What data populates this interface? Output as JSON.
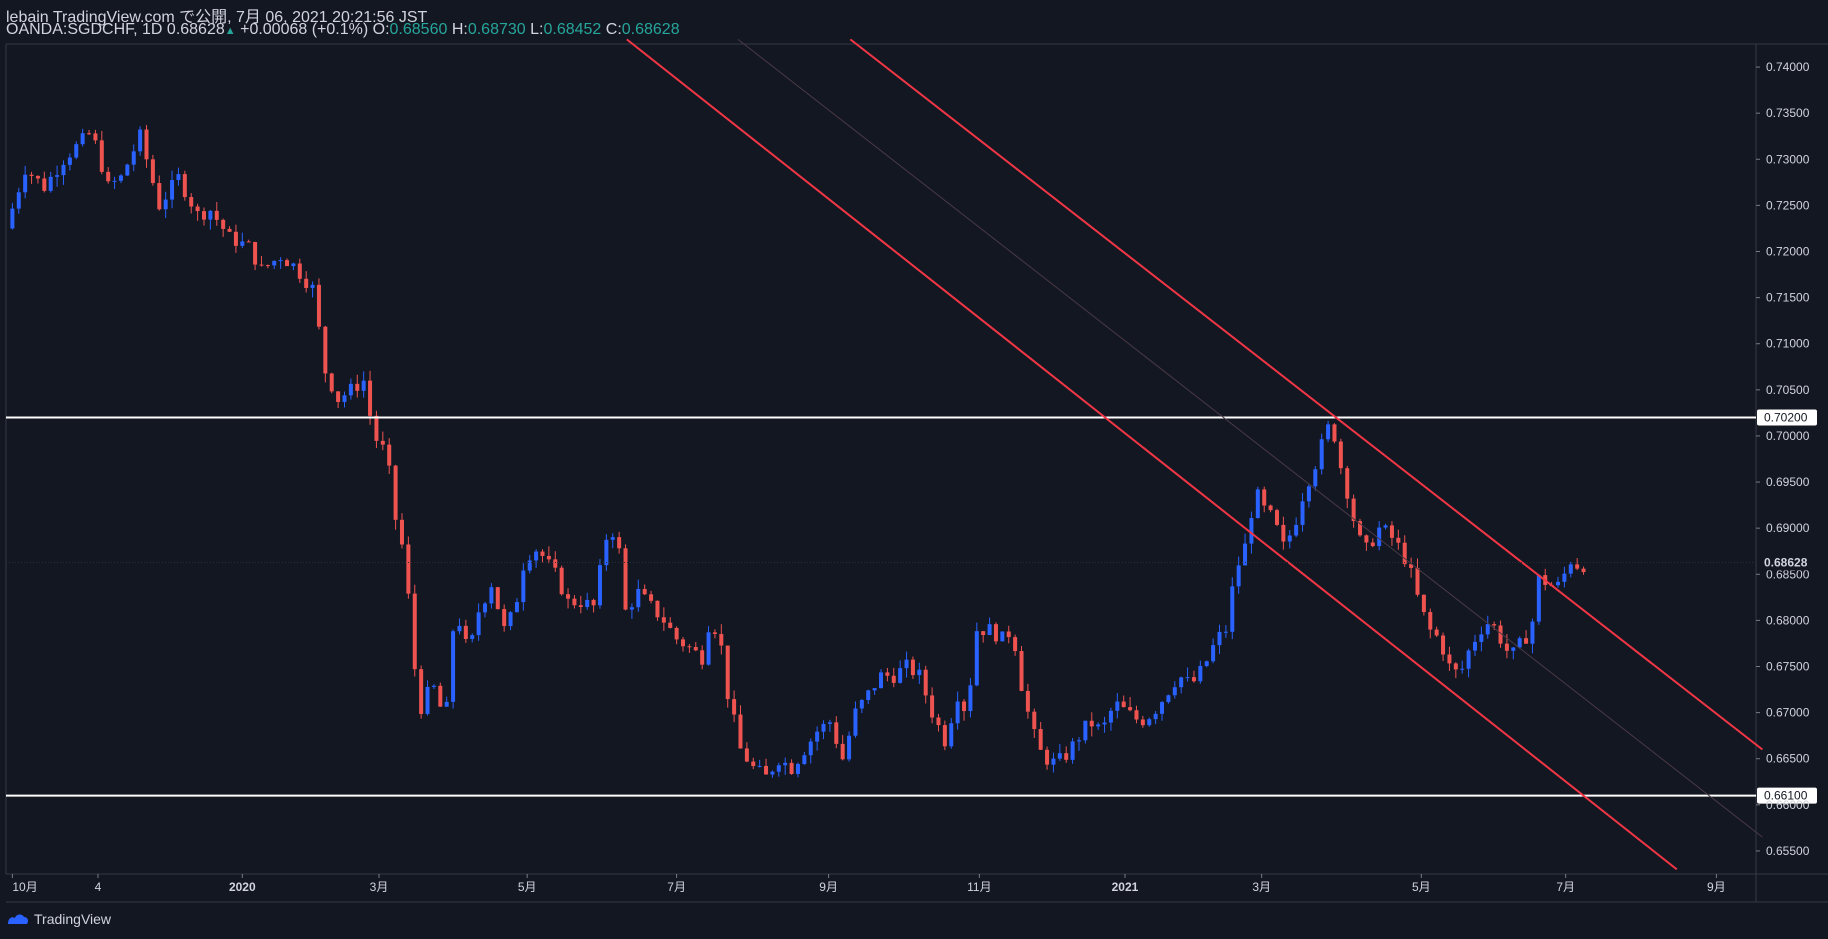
{
  "header": {
    "publisher": "lebain TradingView.com で公開, 7月 06, 2021 20:21:56 JST",
    "symbol": "OANDA:SGDCHF, 1D 0.68628",
    "change_arrow": "▲",
    "change": "+0.00068 (+0.1%)",
    "o_label": "O:",
    "o_value": "0.68560",
    "h_label": "H:",
    "h_value": "0.68730",
    "l_label": "L:",
    "l_value": "0.68452",
    "c_label": "C:",
    "c_value": "0.68628"
  },
  "footer": {
    "brand": "TradingView"
  },
  "colors": {
    "background": "#131722",
    "up": "#2962ff",
    "down": "#ef5350",
    "trendline": "#f23645",
    "level": "#ffffff",
    "text": "#d1d4dc",
    "grid": "#2a2e39"
  },
  "chart_data": {
    "type": "candlestick",
    "symbol": "OANDA:SGDCHF",
    "interval": "1D",
    "ylim": [
      0.6525,
      0.7425
    ],
    "y_ticks": [
      "0.74000",
      "0.73500",
      "0.73000",
      "0.72500",
      "0.72000",
      "0.71500",
      "0.71000",
      "0.70500",
      "0.70000",
      "0.69500",
      "0.69000",
      "0.68500",
      "0.68000",
      "0.67500",
      "0.67000",
      "0.66500",
      "0.66000",
      "0.65500"
    ],
    "x_ticks": [
      {
        "label": "10月",
        "t": 0
      },
      {
        "label": "4",
        "t": 67
      },
      {
        "label": "2020",
        "t": 180,
        "bold": true
      },
      {
        "label": "3月",
        "t": 287
      },
      {
        "label": "5月",
        "t": 403
      },
      {
        "label": "7月",
        "t": 520
      },
      {
        "label": "9月",
        "t": 639
      },
      {
        "label": "11月",
        "t": 757
      },
      {
        "label": "2021",
        "t": 871,
        "bold": true
      },
      {
        "label": "3月",
        "t": 978
      },
      {
        "label": "5月",
        "t": 1103
      },
      {
        "label": "7月",
        "t": 1216
      },
      {
        "label": "9月",
        "t": 1334
      }
    ],
    "x_range": [
      -5,
      1365
    ],
    "price_line": {
      "value": 0.68628,
      "label": "0.68628"
    },
    "levels": [
      {
        "value": 0.702,
        "label": "0.70200"
      },
      {
        "value": 0.661,
        "label": "0.66100"
      }
    ],
    "channel": {
      "upper": [
        [
          656,
          0.743
        ],
        [
          1370,
          0.666
        ]
      ],
      "lower": [
        [
          481,
          0.743
        ],
        [
          1303,
          0.653
        ]
      ],
      "middle": [
        [
          568,
          0.743
        ],
        [
          1370,
          0.6565
        ]
      ]
    },
    "anchors": [
      [
        0,
        0.7225
      ],
      [
        15,
        0.729
      ],
      [
        30,
        0.727
      ],
      [
        45,
        0.73
      ],
      [
        67,
        0.733
      ],
      [
        80,
        0.727
      ],
      [
        90,
        0.728
      ],
      [
        105,
        0.7325
      ],
      [
        120,
        0.725
      ],
      [
        135,
        0.728
      ],
      [
        150,
        0.724
      ],
      [
        160,
        0.7245
      ],
      [
        175,
        0.7215
      ],
      [
        190,
        0.7205
      ],
      [
        200,
        0.718
      ],
      [
        215,
        0.7195
      ],
      [
        225,
        0.7185
      ],
      [
        240,
        0.716
      ],
      [
        250,
        0.707
      ],
      [
        260,
        0.704
      ],
      [
        270,
        0.705
      ],
      [
        280,
        0.706
      ],
      [
        288,
        0.7
      ],
      [
        298,
        0.698
      ],
      [
        305,
        0.691
      ],
      [
        312,
        0.687
      ],
      [
        318,
        0.678
      ],
      [
        323,
        0.67
      ],
      [
        330,
        0.672
      ],
      [
        338,
        0.673
      ],
      [
        343,
        0.667
      ],
      [
        350,
        0.679
      ],
      [
        356,
        0.68
      ],
      [
        362,
        0.676
      ],
      [
        370,
        0.681
      ],
      [
        380,
        0.684
      ],
      [
        390,
        0.679
      ],
      [
        398,
        0.681
      ],
      [
        405,
        0.686
      ],
      [
        413,
        0.688
      ],
      [
        420,
        0.687
      ],
      [
        430,
        0.685
      ],
      [
        440,
        0.682
      ],
      [
        450,
        0.682
      ],
      [
        460,
        0.6815
      ],
      [
        470,
        0.689
      ],
      [
        478,
        0.69
      ],
      [
        485,
        0.681
      ],
      [
        495,
        0.683
      ],
      [
        505,
        0.6815
      ],
      [
        515,
        0.68
      ],
      [
        525,
        0.678
      ],
      [
        535,
        0.677
      ],
      [
        545,
        0.676
      ],
      [
        550,
        0.6795
      ],
      [
        558,
        0.679
      ],
      [
        565,
        0.672
      ],
      [
        575,
        0.666
      ],
      [
        585,
        0.664
      ],
      [
        595,
        0.663
      ],
      [
        605,
        0.665
      ],
      [
        615,
        0.664
      ],
      [
        625,
        0.666
      ],
      [
        635,
        0.668
      ],
      [
        645,
        0.669
      ],
      [
        655,
        0.665
      ],
      [
        665,
        0.67
      ],
      [
        675,
        0.672
      ],
      [
        685,
        0.674
      ],
      [
        695,
        0.674
      ],
      [
        705,
        0.675
      ],
      [
        715,
        0.674
      ],
      [
        725,
        0.67
      ],
      [
        735,
        0.667
      ],
      [
        745,
        0.672
      ],
      [
        752,
        0.67
      ],
      [
        760,
        0.679
      ],
      [
        770,
        0.679
      ],
      [
        780,
        0.678
      ],
      [
        788,
        0.679
      ],
      [
        795,
        0.673
      ],
      [
        800,
        0.67
      ],
      [
        808,
        0.666
      ],
      [
        818,
        0.6645
      ],
      [
        828,
        0.665
      ],
      [
        838,
        0.667
      ],
      [
        848,
        0.669
      ],
      [
        858,
        0.668
      ],
      [
        868,
        0.671
      ],
      [
        878,
        0.67
      ],
      [
        888,
        0.669
      ],
      [
        898,
        0.67
      ],
      [
        908,
        0.672
      ],
      [
        918,
        0.674
      ],
      [
        928,
        0.673
      ],
      [
        938,
        0.675
      ],
      [
        948,
        0.678
      ],
      [
        955,
        0.679
      ],
      [
        962,
        0.685
      ],
      [
        970,
        0.688
      ],
      [
        978,
        0.694
      ],
      [
        985,
        0.692
      ],
      [
        992,
        0.691
      ],
      [
        1000,
        0.688
      ],
      [
        1008,
        0.69
      ],
      [
        1016,
        0.694
      ],
      [
        1022,
        0.696
      ],
      [
        1028,
        0.698
      ],
      [
        1034,
        0.701
      ],
      [
        1040,
        0.7
      ],
      [
        1046,
        0.696
      ],
      [
        1052,
        0.693
      ],
      [
        1058,
        0.689
      ],
      [
        1066,
        0.6875
      ],
      [
        1074,
        0.69
      ],
      [
        1082,
        0.6895
      ],
      [
        1090,
        0.688
      ],
      [
        1098,
        0.686
      ],
      [
        1106,
        0.682
      ],
      [
        1114,
        0.679
      ],
      [
        1122,
        0.678
      ],
      [
        1130,
        0.675
      ],
      [
        1138,
        0.674
      ],
      [
        1146,
        0.677
      ],
      [
        1154,
        0.679
      ],
      [
        1162,
        0.68
      ],
      [
        1170,
        0.678
      ],
      [
        1178,
        0.676
      ],
      [
        1186,
        0.6775
      ],
      [
        1194,
        0.679
      ],
      [
        1200,
        0.6845
      ],
      [
        1208,
        0.684
      ],
      [
        1214,
        0.6835
      ],
      [
        1220,
        0.685
      ],
      [
        1226,
        0.6868
      ],
      [
        1230,
        0.686
      ]
    ]
  }
}
